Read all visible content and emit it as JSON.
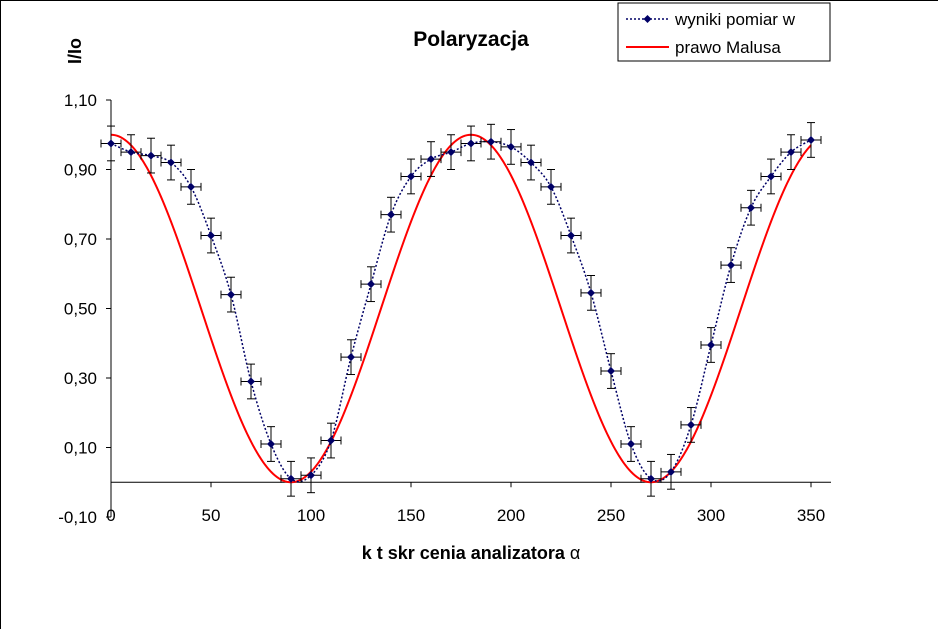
{
  "chart_data": {
    "type": "line",
    "title": "Polaryzacja",
    "xlabel": "k  t skr  cenia analizatora",
    "xlabel_symbol": "α",
    "ylabel": "I/Io",
    "xlim": [
      0,
      360
    ],
    "ylim": [
      -0.1,
      1.1
    ],
    "x_ticks": [
      0,
      50,
      100,
      150,
      200,
      250,
      300,
      350
    ],
    "x_tick_labels": [
      "0",
      "50",
      "100",
      "150",
      "200",
      "250",
      "300",
      "350"
    ],
    "y_ticks": [
      1.1,
      0.9,
      0.7,
      0.5,
      0.3,
      0.1,
      -0.1
    ],
    "y_tick_labels": [
      "1,10",
      "0,90",
      "0,70",
      "0,50",
      "0,30",
      "0,10",
      "-0,10"
    ],
    "x_axis_at_y": 0,
    "grid": false,
    "legend_position": "top-right",
    "series": [
      {
        "name": "wyniki pomiar  w",
        "color": "#000066",
        "style": "dotted-with-diamond-markers",
        "x": [
          0,
          10,
          20,
          30,
          40,
          50,
          60,
          70,
          80,
          90,
          100,
          110,
          120,
          130,
          140,
          150,
          160,
          170,
          180,
          190,
          200,
          210,
          220,
          230,
          240,
          250,
          260,
          270,
          280,
          290,
          300,
          310,
          320,
          330,
          340,
          350
        ],
        "y": [
          0.975,
          0.95,
          0.94,
          0.92,
          0.85,
          0.71,
          0.54,
          0.29,
          0.11,
          0.01,
          0.02,
          0.12,
          0.36,
          0.57,
          0.77,
          0.88,
          0.93,
          0.95,
          0.975,
          0.98,
          0.965,
          0.92,
          0.85,
          0.71,
          0.545,
          0.32,
          0.11,
          0.01,
          0.03,
          0.165,
          0.395,
          0.625,
          0.79,
          0.88,
          0.95,
          0.985
        ],
        "x_error": 5,
        "y_error": 0.05
      },
      {
        "name": "prawo Malusa",
        "color": "#ff0000",
        "style": "solid",
        "function": "cos^2",
        "x_range": [
          0,
          350
        ],
        "peak_x": 0,
        "period": 180,
        "amplitude": 1.0
      }
    ]
  }
}
